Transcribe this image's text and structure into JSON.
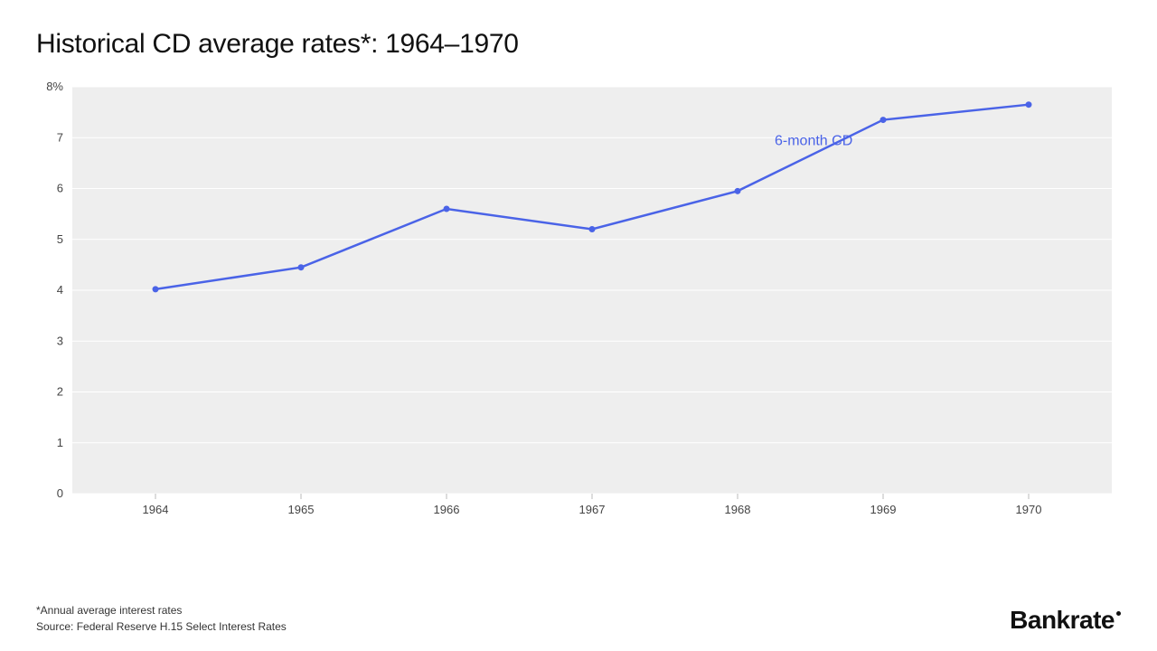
{
  "title": "Historical CD average rates*: 1964–1970",
  "chart": {
    "type": "line",
    "plot_bg": "#eeeeee",
    "grid_color": "#ffffff",
    "axis_text_color": "#444444",
    "axis_fontsize": 13,
    "x": {
      "categories": [
        "1964",
        "1965",
        "1966",
        "1967",
        "1968",
        "1969",
        "1970"
      ]
    },
    "y": {
      "min": 0,
      "max": 8,
      "ticks": [
        0,
        1,
        2,
        3,
        4,
        5,
        6,
        7,
        8
      ],
      "tick_labels": [
        "0",
        "1",
        "2",
        "3",
        "4",
        "5",
        "6",
        "7",
        "8%"
      ]
    },
    "series": [
      {
        "name": "6-month CD",
        "label": "6-month CD",
        "color": "#4a63e7",
        "line_width": 2.5,
        "marker_radius": 3.5,
        "values": [
          4.02,
          4.45,
          5.6,
          5.2,
          5.95,
          7.35,
          7.65
        ],
        "label_position": {
          "after_index": 5,
          "dx": -120,
          "dy": 28
        }
      }
    ]
  },
  "footnote": "*Annual average interest rates",
  "source": "Source: Federal Reserve H.15 Select Interest Rates",
  "brand": "Bankrate"
}
